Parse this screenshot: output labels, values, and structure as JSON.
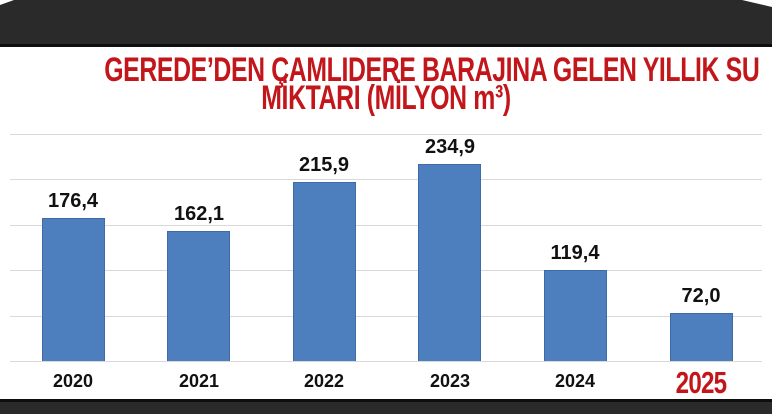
{
  "page": {
    "background": "#ffffff",
    "top_band_color": "#2a2a2b",
    "bottom_band_color": "#2a2a2b",
    "band_edge_color": "#0e0e0f"
  },
  "title": {
    "line1": "GEREDE’DEN ÇAMLIDERE BARAJINA GELEN YILLIK SU",
    "line2": "MİKTARI (MİLYON m³)",
    "color": "#c3161b"
  },
  "chart_data": {
    "type": "bar",
    "title": "GEREDE’DEN ÇAMLIDERE BARAJINA GELEN YILLIK SU MİKTARI (MİLYON m³)",
    "categories": [
      "2020",
      "2021",
      "2022",
      "2023",
      "2024",
      "2025"
    ],
    "values": [
      176.4,
      162.1,
      215.9,
      234.9,
      119.4,
      72.0
    ],
    "value_labels": [
      "176,4",
      "162,1",
      "215,9",
      "234,9",
      "119,4",
      "72,0"
    ],
    "unit": "milyon m³",
    "xlabel": "",
    "ylabel": "",
    "grid": true,
    "gridline_count": 6,
    "legend": false,
    "bar_color": "#4d7ebd",
    "bar_border_color": "#3e6ba6",
    "gridline_color": "#d9d9d9",
    "data_label_color": "#111111",
    "x_tick_color": "#111111",
    "highlight": {
      "category": "2025",
      "color": "#c3161b"
    }
  }
}
